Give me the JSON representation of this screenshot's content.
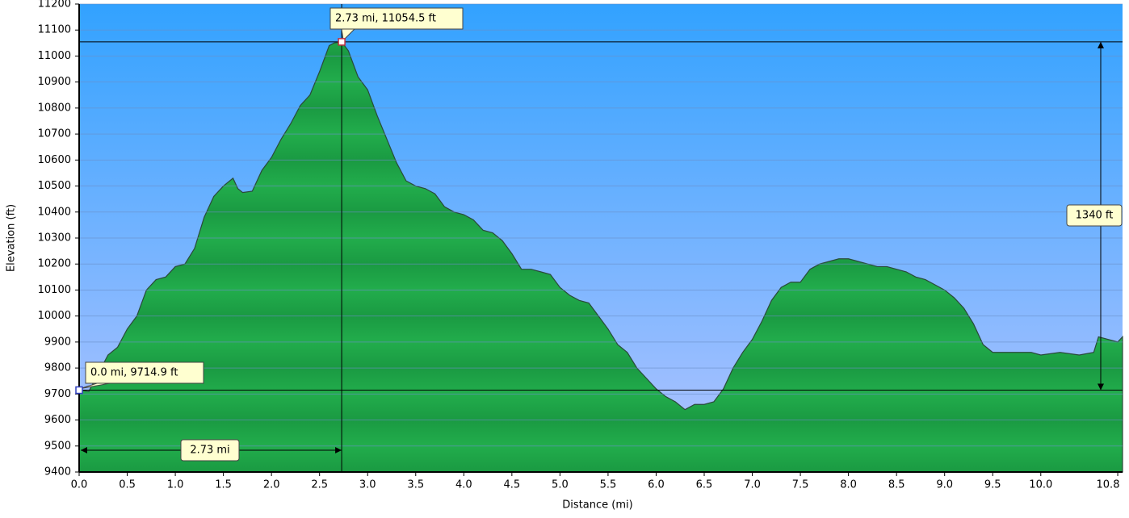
{
  "chart_data": {
    "type": "area",
    "x_label": "Distance   (mi)",
    "y_label": "Elevation (ft)",
    "x": [
      0.0,
      0.1,
      0.2,
      0.3,
      0.4,
      0.5,
      0.6,
      0.7,
      0.8,
      0.9,
      1.0,
      1.1,
      1.2,
      1.3,
      1.4,
      1.5,
      1.6,
      1.65,
      1.7,
      1.8,
      1.9,
      2.0,
      2.1,
      2.2,
      2.3,
      2.4,
      2.5,
      2.6,
      2.65,
      2.73,
      2.8,
      2.9,
      3.0,
      3.1,
      3.2,
      3.3,
      3.4,
      3.5,
      3.6,
      3.7,
      3.8,
      3.9,
      4.0,
      4.1,
      4.2,
      4.3,
      4.4,
      4.5,
      4.6,
      4.7,
      4.8,
      4.9,
      5.0,
      5.1,
      5.2,
      5.3,
      5.4,
      5.5,
      5.6,
      5.7,
      5.8,
      5.9,
      6.0,
      6.1,
      6.2,
      6.3,
      6.4,
      6.5,
      6.6,
      6.7,
      6.8,
      6.9,
      7.0,
      7.1,
      7.2,
      7.3,
      7.4,
      7.5,
      7.6,
      7.7,
      7.8,
      7.9,
      8.0,
      8.1,
      8.2,
      8.3,
      8.4,
      8.5,
      8.6,
      8.7,
      8.8,
      8.9,
      9.0,
      9.1,
      9.2,
      9.3,
      9.4,
      9.5,
      9.6,
      9.7,
      9.8,
      9.9,
      10.0,
      10.2,
      10.4,
      10.55,
      10.6,
      10.8,
      10.85
    ],
    "values": [
      9714.9,
      9710,
      9780,
      9850,
      9880,
      9950,
      10000,
      10100,
      10140,
      10150,
      10190,
      10200,
      10260,
      10380,
      10460,
      10500,
      10530,
      10490,
      10475,
      10480,
      10560,
      10610,
      10680,
      10740,
      10810,
      10850,
      10940,
      11040,
      11050,
      11054.5,
      11020,
      10920,
      10870,
      10770,
      10680,
      10590,
      10520,
      10500,
      10490,
      10470,
      10420,
      10400,
      10390,
      10370,
      10330,
      10320,
      10290,
      10240,
      10180,
      10180,
      10170,
      10160,
      10110,
      10080,
      10060,
      10050,
      10000,
      9950,
      9890,
      9860,
      9800,
      9760,
      9720,
      9690,
      9670,
      9640,
      9660,
      9660,
      9670,
      9720,
      9800,
      9860,
      9910,
      9980,
      10060,
      10110,
      10130,
      10130,
      10180,
      10200,
      10210,
      10220,
      10220,
      10210,
      10200,
      10190,
      10190,
      10180,
      10170,
      10150,
      10140,
      10120,
      10100,
      10070,
      10030,
      9970,
      9890,
      9860,
      9860,
      9860,
      9860,
      9860,
      9850,
      9860,
      9850,
      9860,
      9920,
      9900,
      9920
    ],
    "color": "#1fa84a",
    "xlim": [
      0,
      10.85
    ],
    "ylim": [
      9400,
      11200
    ],
    "xticks": [
      {
        "value": 0,
        "label": "0.0"
      },
      0.5,
      {
        "value": 1,
        "label": "1.0"
      },
      1.5,
      {
        "value": 2,
        "label": "2.0"
      },
      2.5,
      {
        "value": 3,
        "label": "3.0"
      },
      3.5,
      {
        "value": 4,
        "label": "4.0"
      },
      4.5,
      {
        "value": 5,
        "label": "5.0"
      },
      5.5,
      {
        "value": 6,
        "label": "6.0"
      },
      6.5,
      {
        "value": 7,
        "label": "7.0"
      },
      7.5,
      {
        "value": 8,
        "label": "8.0"
      },
      8.5,
      {
        "value": 9,
        "label": "9.0"
      },
      9.5,
      {
        "value": 10,
        "label": "10.0"
      },
      10.8
    ],
    "yticks": [
      9400,
      9500,
      9600,
      9700,
      9800,
      9900,
      10000,
      10100,
      10200,
      10300,
      10400,
      10500,
      10600,
      10700,
      10800,
      10900,
      11000,
      11100,
      11200
    ],
    "grid": true,
    "points": [
      {
        "x": 0.0,
        "y": 9714.9,
        "label": "0.0 mi, 9714.9 ft",
        "color": "#3040c0"
      },
      {
        "x": 2.73,
        "y": 11054.5,
        "label": "2.73 mi, 11054.5 ft",
        "color": "#c03040"
      }
    ],
    "distance_label": "2.73 mi",
    "gain_label": "1340 ft"
  }
}
